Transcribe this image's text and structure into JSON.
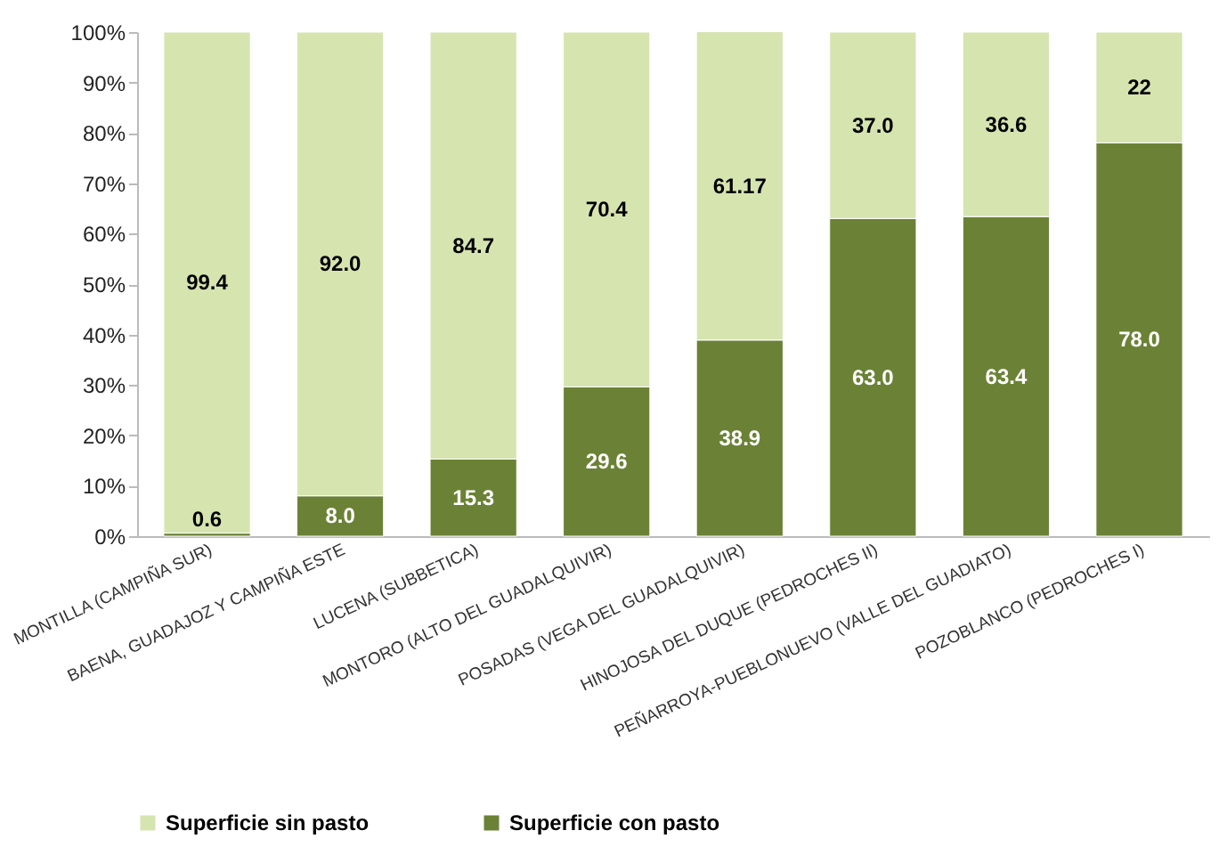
{
  "chart_data": {
    "type": "bar",
    "stacked": true,
    "categories": [
      "MONTILLA (CAMPIÑA SUR)",
      "BAENA, GUADAJOZ Y CAMPIÑA ESTE",
      "LUCENA (SUBBETICA)",
      "MONTORO (ALTO DEL GUADALQUIVIR)",
      "POSADAS (VEGA DEL GUADALQUIVIR)",
      "HINOJOSA DEL DUQUE (PEDROCHES II)",
      "PEÑARROYA-PUEBLONUEVO (VALLE DEL GUADIATO)",
      "POZOBLANCO (PEDROCHES I)"
    ],
    "series": [
      {
        "name": "Superficie con pasto",
        "color": "#6b8236",
        "values": [
          0.6,
          8.0,
          15.3,
          29.6,
          38.9,
          63.0,
          63.4,
          78.0
        ],
        "value_labels": [
          "0.6",
          "8.0",
          "15.3",
          "29.6",
          "38.9",
          "63.0",
          "63.4",
          "78.0"
        ]
      },
      {
        "name": "Superficie sin pasto",
        "color": "#d6e4b0",
        "values": [
          99.4,
          92.0,
          84.7,
          70.4,
          61.17,
          37.0,
          36.6,
          22
        ],
        "value_labels": [
          "99.4",
          "92.0",
          "84.7",
          "70.4",
          "61.17",
          "37.0",
          "36.6",
          "22"
        ]
      }
    ],
    "ylim": [
      0,
      100
    ],
    "yticks": [
      {
        "value": 0,
        "label": "0%"
      },
      {
        "value": 10,
        "label": "10%"
      },
      {
        "value": 20,
        "label": "20%"
      },
      {
        "value": 30,
        "label": "30%"
      },
      {
        "value": 40,
        "label": "40%"
      },
      {
        "value": 50,
        "label": "50%"
      },
      {
        "value": 60,
        "label": "60%"
      },
      {
        "value": 70,
        "label": "70%"
      },
      {
        "value": 80,
        "label": "80%"
      },
      {
        "value": 90,
        "label": "90%"
      },
      {
        "value": 100,
        "label": "100%"
      }
    ],
    "legend": "bottom"
  }
}
